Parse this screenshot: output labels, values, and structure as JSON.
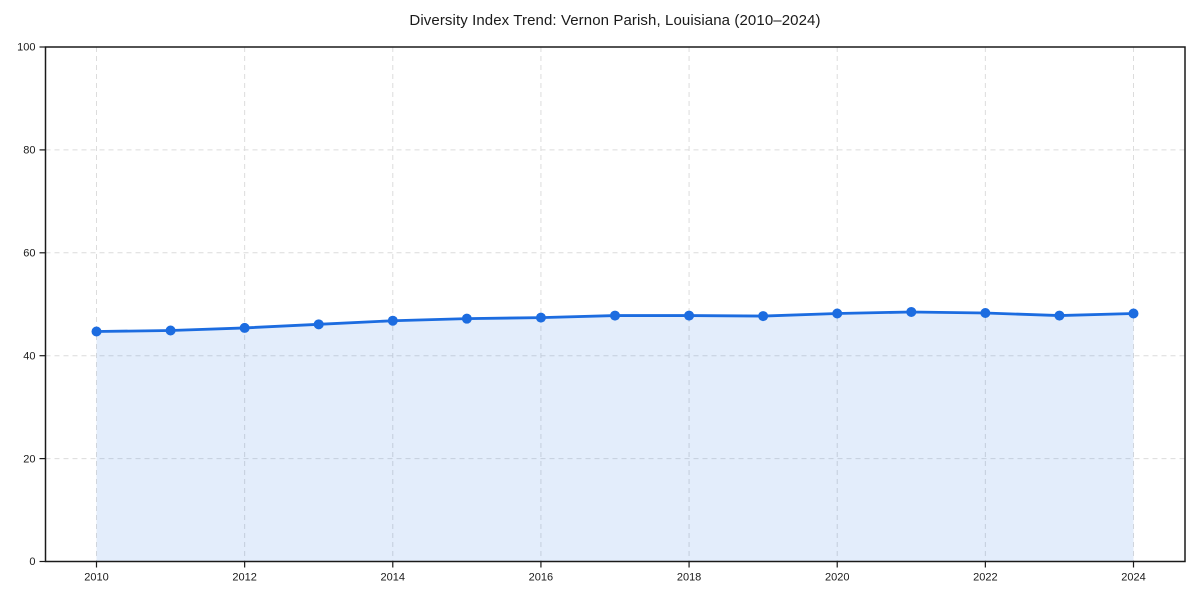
{
  "chart_data": {
    "type": "area",
    "title": "Diversity Index Trend: Vernon Parish, Louisiana (2010–2024)",
    "x": [
      2010,
      2011,
      2012,
      2013,
      2014,
      2015,
      2016,
      2017,
      2018,
      2019,
      2020,
      2021,
      2022,
      2023,
      2024
    ],
    "series": [
      {
        "name": "Diversity Index",
        "values": [
          44.7,
          44.9,
          45.4,
          46.1,
          46.8,
          47.2,
          47.4,
          47.8,
          47.8,
          47.7,
          48.2,
          48.5,
          48.3,
          47.8,
          48.2
        ]
      }
    ],
    "xlabel": "",
    "ylabel": "",
    "xlim": [
      2009.3,
      2024.7
    ],
    "ylim": [
      0,
      100
    ],
    "xticks": [
      2010,
      2012,
      2014,
      2016,
      2018,
      2020,
      2022,
      2024
    ],
    "yticks": [
      0,
      20,
      40,
      60,
      80,
      100
    ],
    "grid": true,
    "grid_style": "dashed",
    "legend": false,
    "colors": {
      "line": "#1c6ce0",
      "marker": "#1c6ce0",
      "fill": "rgba(28, 108, 224, 0.12)",
      "grid": "#dcdcdc",
      "spine": "#1a1a1a",
      "tick_text": "#1a1a1a",
      "background": "#ffffff"
    },
    "marker": "circle"
  }
}
